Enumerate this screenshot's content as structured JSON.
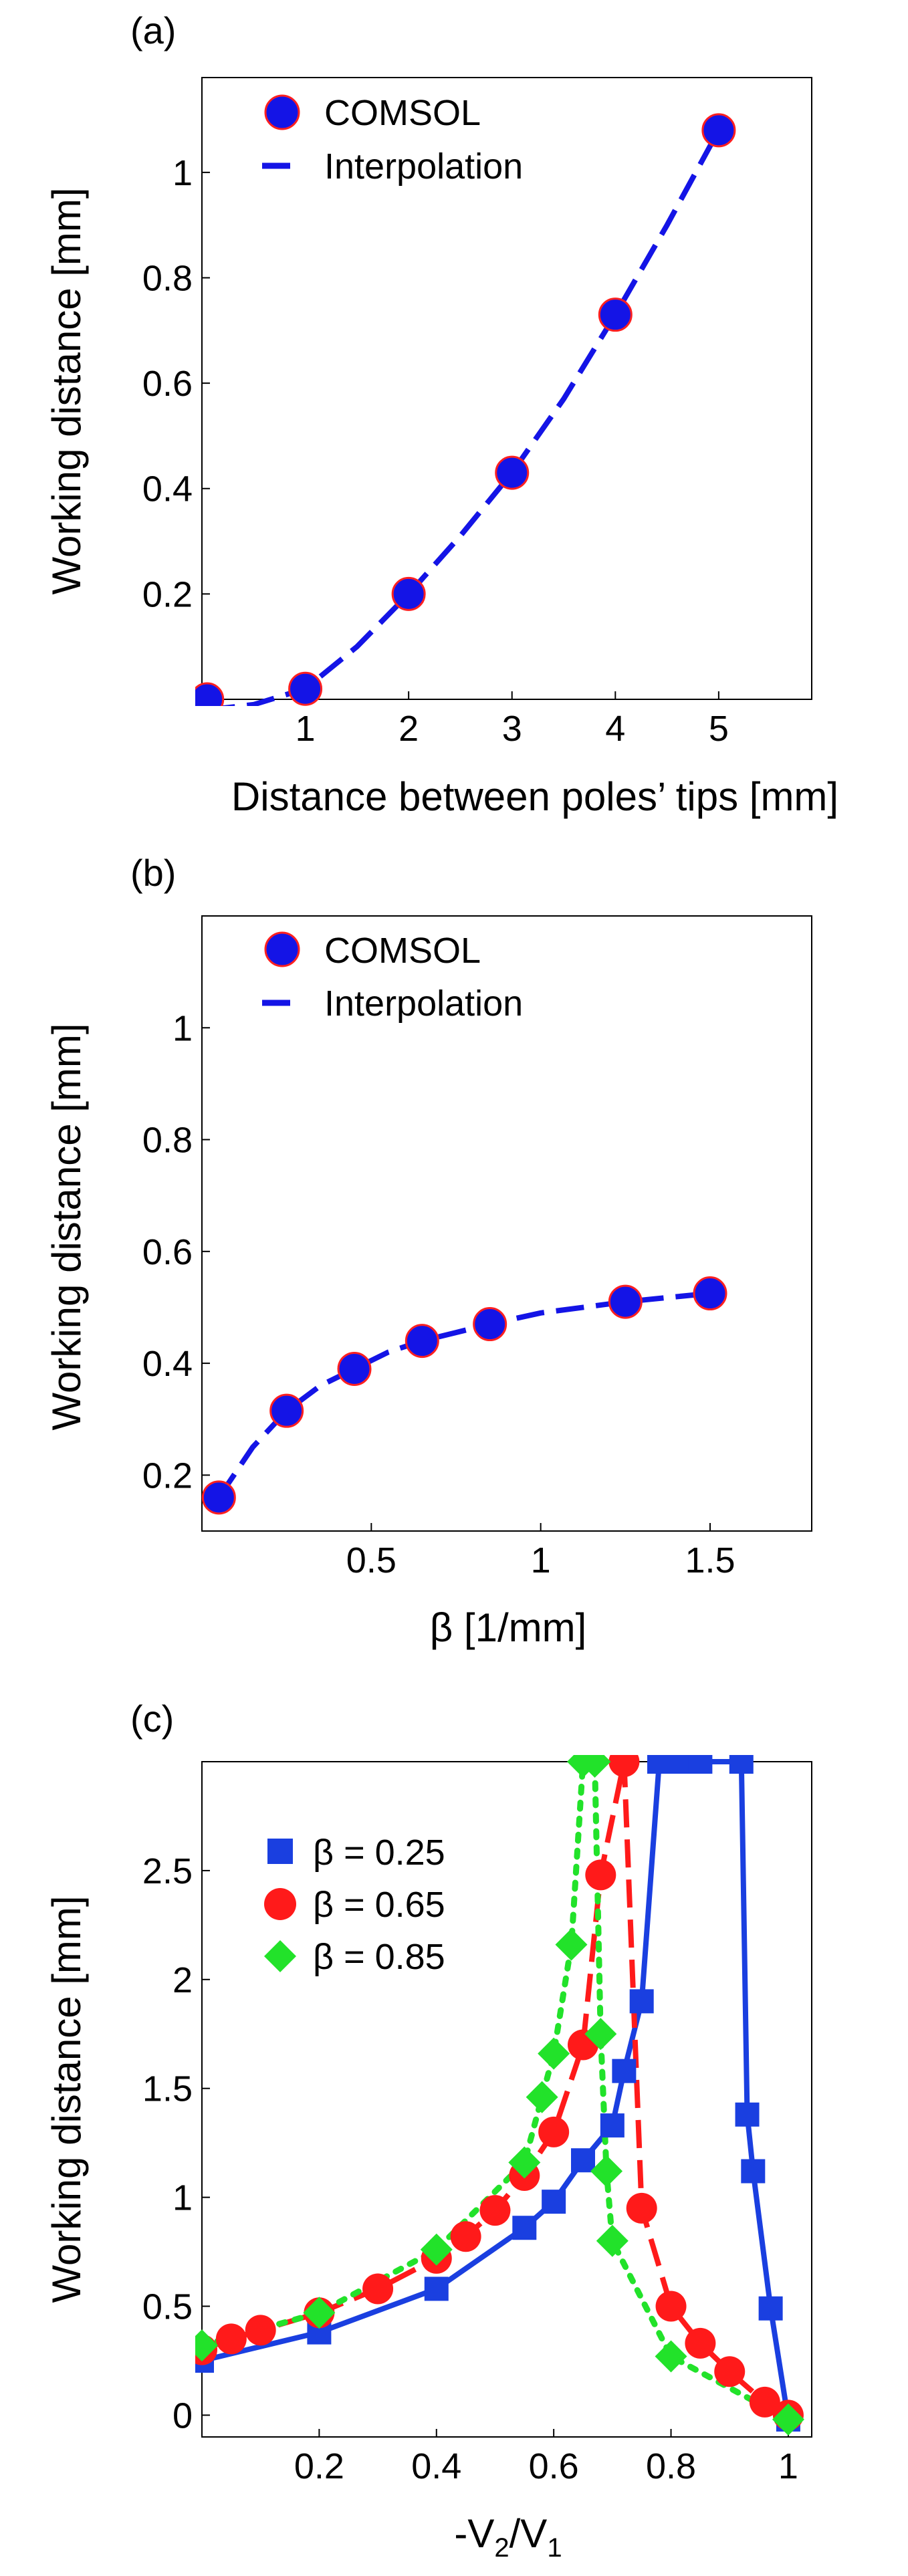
{
  "chart_data": [
    {
      "panel": "(a)",
      "type": "scatter",
      "xlabel": "Distance between poles’ tips [mm]",
      "ylabel": "Working distance [mm]",
      "xlim": [
        0,
        5.9
      ],
      "ylim": [
        0,
        1.18
      ],
      "xticks": [
        1,
        2,
        3,
        4,
        5
      ],
      "xtick_labels": [
        "1",
        "2",
        "3",
        "4",
        "5"
      ],
      "yticks": [
        0.2,
        0.4,
        0.6,
        0.8,
        1
      ],
      "ytick_labels": [
        "0.2",
        "0.4",
        "0.6",
        "0.8",
        "1"
      ],
      "legend": [
        "COMSOL",
        "Interpolation"
      ],
      "series": [
        {
          "name": "COMSOL",
          "style": "marker",
          "marker": "circle",
          "color": "#1414e6",
          "edge": "#ff2020",
          "x": [
            0.05,
            1,
            2,
            3,
            4,
            5
          ],
          "y": [
            0.0,
            0.02,
            0.2,
            0.43,
            0.73,
            1.08
          ]
        },
        {
          "name": "Interpolation",
          "style": "dashed",
          "color": "#1414e6",
          "x": [
            0.05,
            0.5,
            1,
            1.5,
            2,
            2.5,
            3,
            3.5,
            4,
            4.5,
            5
          ],
          "y": [
            -0.02,
            -0.01,
            0.02,
            0.1,
            0.2,
            0.31,
            0.43,
            0.57,
            0.73,
            0.9,
            1.08
          ]
        }
      ]
    },
    {
      "panel": "(b)",
      "type": "scatter",
      "xlabel": "β [1/mm]",
      "ylabel": "Working distance [mm]",
      "xlim": [
        0,
        1.8
      ],
      "ylim": [
        0.1,
        1.2
      ],
      "xticks": [
        0.5,
        1,
        1.5
      ],
      "xtick_labels": [
        "0.5",
        "1",
        "1.5"
      ],
      "yticks": [
        0.2,
        0.4,
        0.6,
        0.8,
        1
      ],
      "ytick_labels": [
        "0.2",
        "0.4",
        "0.6",
        "0.8",
        "1"
      ],
      "legend": [
        "COMSOL",
        "Interpolation"
      ],
      "series": [
        {
          "name": "COMSOL",
          "style": "marker",
          "marker": "circle",
          "color": "#1414e6",
          "edge": "#ff2020",
          "x": [
            0.05,
            0.25,
            0.45,
            0.65,
            0.85,
            1.25,
            1.5
          ],
          "y": [
            0.16,
            0.315,
            0.39,
            0.44,
            0.47,
            0.51,
            0.525
          ]
        },
        {
          "name": "Interpolation",
          "style": "dashed",
          "color": "#1414e6",
          "x": [
            0.05,
            0.15,
            0.25,
            0.35,
            0.45,
            0.55,
            0.65,
            0.75,
            0.85,
            1.0,
            1.25,
            1.5
          ],
          "y": [
            0.16,
            0.25,
            0.315,
            0.36,
            0.39,
            0.42,
            0.44,
            0.455,
            0.47,
            0.49,
            0.51,
            0.525
          ]
        }
      ]
    },
    {
      "panel": "(c)",
      "type": "line",
      "xlabel": "-V",
      "xlabel_sub1": "2",
      "xlabel_mid": "/V",
      "xlabel_sub2": "1",
      "ylabel": "Working distance [mm]",
      "xlim": [
        0,
        1.04
      ],
      "ylim": [
        -0.1,
        3.0
      ],
      "xticks": [
        0.2,
        0.4,
        0.6,
        0.8,
        1
      ],
      "xtick_labels": [
        "0.2",
        "0.4",
        "0.6",
        "0.8",
        "1"
      ],
      "yticks": [
        0,
        0.5,
        1,
        1.5,
        2,
        2.5
      ],
      "ytick_labels": [
        "0",
        "0.5",
        "1",
        "1.5",
        "2",
        "2.5"
      ],
      "legend": [
        "β = 0.25",
        "β = 0.65",
        "β = 0.85"
      ],
      "series": [
        {
          "name": "β = 0.25",
          "line": "solid",
          "marker": "square",
          "color": "#1a3fe0",
          "x": [
            0.0,
            0.2,
            0.4,
            0.55,
            0.6,
            0.65,
            0.7,
            0.72,
            0.75,
            0.78,
            0.8,
            0.82,
            0.85,
            0.92,
            0.93,
            0.94,
            0.97,
            1.0
          ],
          "y": [
            0.25,
            0.38,
            0.58,
            0.86,
            0.98,
            1.17,
            1.33,
            1.58,
            1.9,
            3.0,
            3.0,
            3.0,
            3.0,
            3.0,
            1.38,
            1.12,
            0.49,
            -0.02
          ]
        },
        {
          "name": "β = 0.65",
          "line": "dashed",
          "marker": "circle",
          "color": "#ff1a1a",
          "x": [
            0.0,
            0.05,
            0.1,
            0.2,
            0.3,
            0.4,
            0.45,
            0.5,
            0.55,
            0.6,
            0.65,
            0.68,
            0.72,
            0.75,
            0.8,
            0.85,
            0.9,
            0.96,
            1.0
          ],
          "y": [
            0.3,
            0.35,
            0.39,
            0.47,
            0.58,
            0.72,
            0.82,
            0.94,
            1.1,
            1.3,
            1.7,
            2.48,
            3.0,
            0.95,
            0.5,
            0.33,
            0.2,
            0.06,
            0.0
          ]
        },
        {
          "name": "β = 0.85",
          "line": "dotted",
          "marker": "diamond",
          "color": "#22e22a",
          "x": [
            0.0,
            0.2,
            0.4,
            0.55,
            0.58,
            0.6,
            0.63,
            0.65,
            0.67,
            0.68,
            0.69,
            0.7,
            0.8,
            1.0
          ],
          "y": [
            0.32,
            0.47,
            0.76,
            1.16,
            1.46,
            1.66,
            2.16,
            3.0,
            3.0,
            1.75,
            1.12,
            0.8,
            0.27,
            -0.02
          ]
        }
      ]
    }
  ]
}
